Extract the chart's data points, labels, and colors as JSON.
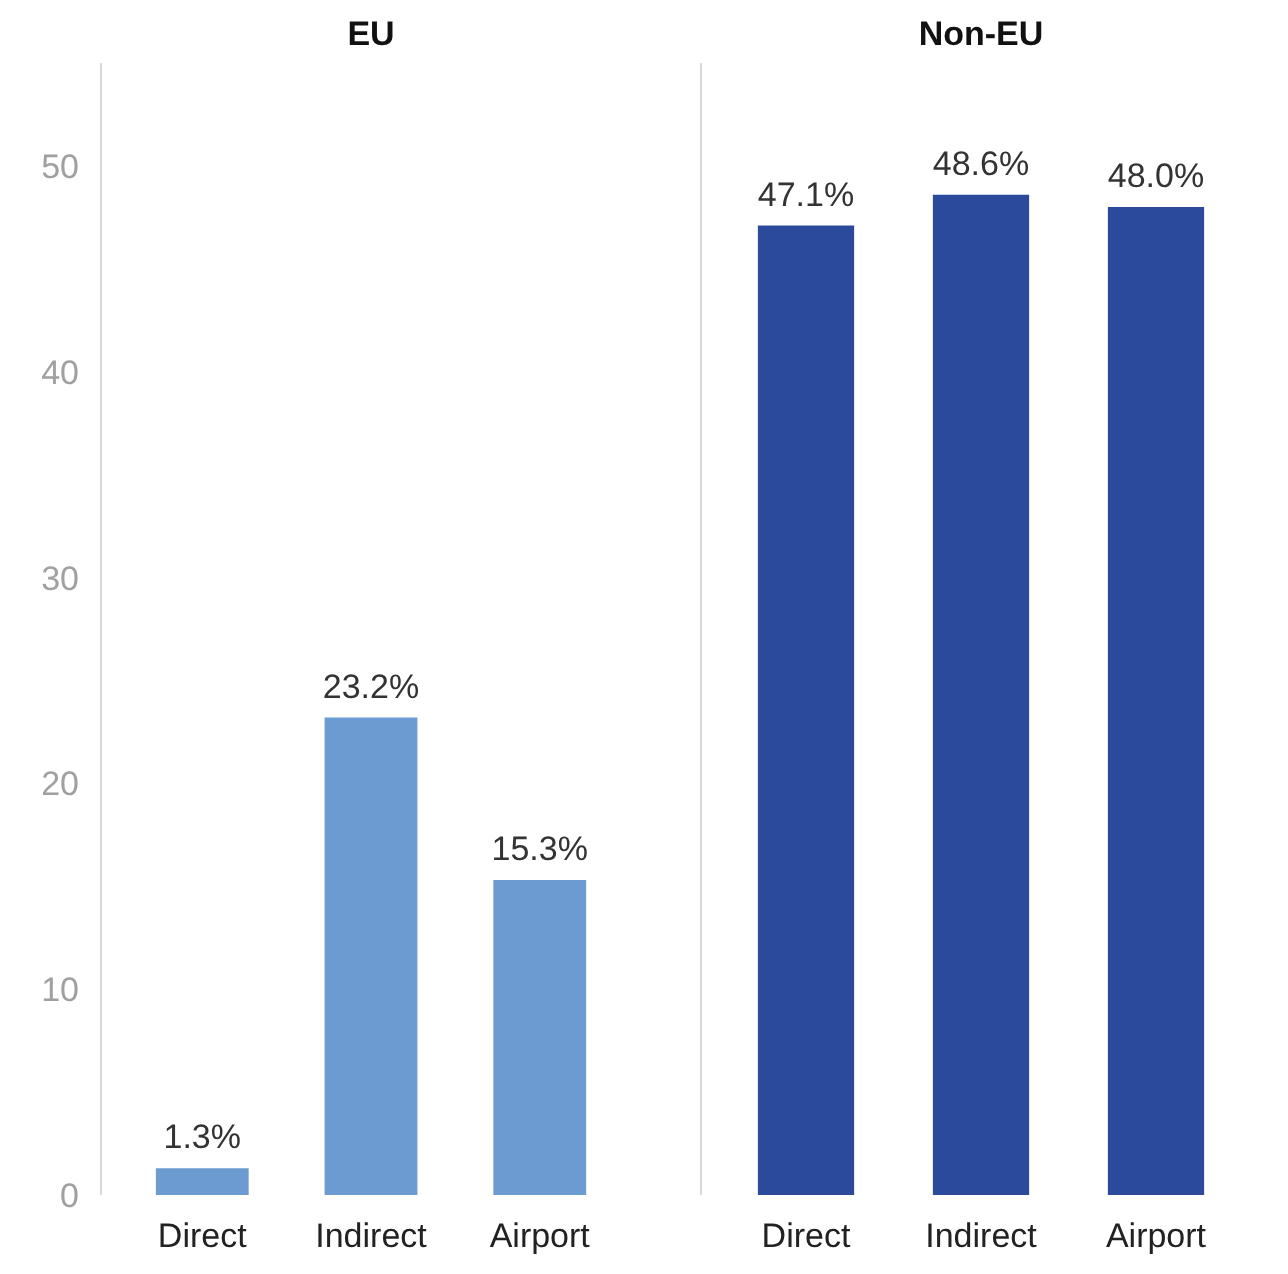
{
  "chart_data": [
    {
      "type": "bar",
      "title": "EU",
      "categories": [
        "Direct",
        "Indirect",
        "Airport"
      ],
      "values": [
        1.3,
        23.2,
        15.3
      ],
      "color": "#6b9bd1",
      "value_labels": [
        "1.3%",
        "23.2%",
        "15.3%"
      ],
      "ylim": [
        0,
        55
      ],
      "yticks": [
        0,
        10,
        20,
        30,
        40,
        50
      ],
      "grid": false
    },
    {
      "type": "bar",
      "title": "Non-EU",
      "categories": [
        "Direct",
        "Indirect",
        "Airport"
      ],
      "values": [
        47.1,
        48.6,
        48.0
      ],
      "color": "#2b4a9b",
      "value_labels": [
        "47.1%",
        "48.6%",
        "48.0%"
      ],
      "ylim": [
        0,
        55
      ],
      "yticks": [
        0,
        10,
        20,
        30,
        40,
        50
      ],
      "grid": false,
      "tick_labels": "x"
    }
  ]
}
